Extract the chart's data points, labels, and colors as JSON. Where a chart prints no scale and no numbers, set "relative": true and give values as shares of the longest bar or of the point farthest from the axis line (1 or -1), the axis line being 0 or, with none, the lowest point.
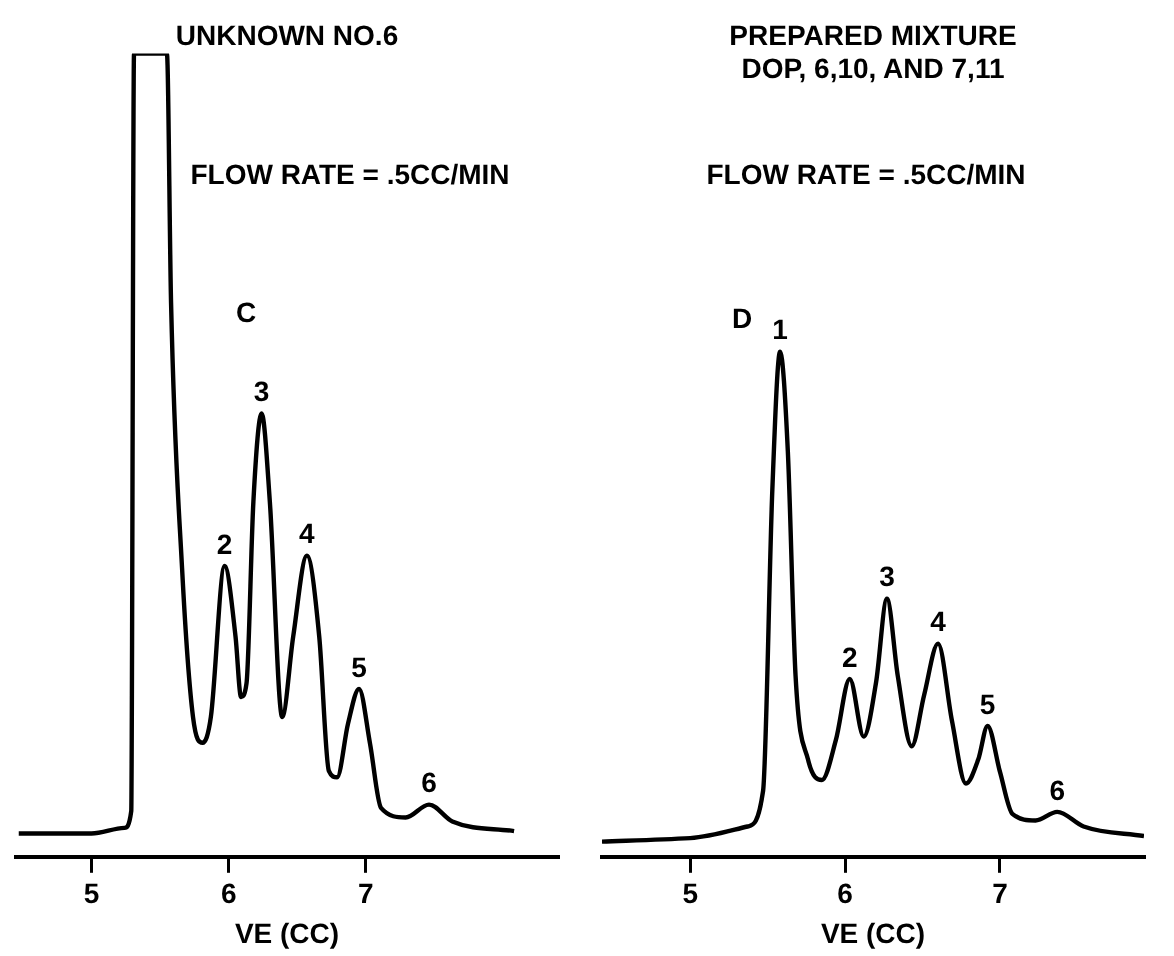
{
  "chart_data": [
    {
      "type": "line",
      "title": "UNKNOWN NO.6",
      "xlabel": "VE (CC)",
      "relative": true,
      "xlim": [
        4.45,
        8.4
      ],
      "xticks": [
        5,
        6,
        7
      ],
      "tick_labels": "x",
      "grid": false,
      "legend": false,
      "marker": "none",
      "line_style": "solid",
      "series": [
        {
          "color": "#000000",
          "x": [
            4.47,
            5.0,
            5.24,
            5.29,
            5.31,
            5.55,
            5.58,
            5.66,
            5.74,
            5.81,
            5.87,
            5.97,
            6.05,
            6.09,
            6.13,
            6.18,
            6.24,
            6.3,
            6.39,
            6.47,
            6.57,
            6.66,
            6.73,
            6.79,
            6.87,
            6.95,
            7.03,
            7.11,
            7.29,
            7.46,
            7.63,
            8.08
          ],
          "values": [
            0.029,
            0.029,
            0.036,
            0.057,
            1.0,
            1.0,
            0.69,
            0.36,
            0.174,
            0.142,
            0.174,
            0.362,
            0.274,
            0.199,
            0.216,
            0.442,
            0.552,
            0.442,
            0.174,
            0.274,
            0.375,
            0.274,
            0.107,
            0.099,
            0.166,
            0.209,
            0.141,
            0.061,
            0.049,
            0.065,
            0.044,
            0.032
          ]
        }
      ],
      "annotations": [
        "FLOW RATE = .5CC/MIN",
        "C",
        {
          "text": "2",
          "x": 5.97,
          "y": 0.362
        },
        {
          "text": "3",
          "x": 6.24,
          "y": 0.552
        },
        {
          "text": "4",
          "x": 6.57,
          "y": 0.375
        },
        {
          "text": "5",
          "x": 6.95,
          "y": 0.209
        },
        {
          "text": "6",
          "x": 7.46,
          "y": 0.065
        }
      ]
    },
    {
      "type": "line",
      "title": "PREPARED MIXTURE",
      "subtitle": "DOP, 6,10, AND 7,11",
      "xlabel": "VE (CC)",
      "relative": true,
      "xlim": [
        4.43,
        7.93
      ],
      "xticks": [
        5,
        6,
        7
      ],
      "tick_labels": "x",
      "grid": false,
      "legend": false,
      "marker": "none",
      "line_style": "solid",
      "series": [
        {
          "color": "#000000",
          "x": [
            4.43,
            5.0,
            5.37,
            5.47,
            5.53,
            5.58,
            5.63,
            5.68,
            5.76,
            5.85,
            5.94,
            6.03,
            6.12,
            6.2,
            6.27,
            6.34,
            6.43,
            6.51,
            6.6,
            6.69,
            6.78,
            6.86,
            6.92,
            7.0,
            7.08,
            7.23,
            7.37,
            7.54,
            7.93
          ],
          "values": [
            0.03,
            0.037,
            0.06,
            0.13,
            0.727,
            1.0,
            0.803,
            0.358,
            0.193,
            0.152,
            0.231,
            0.352,
            0.238,
            0.346,
            0.511,
            0.358,
            0.219,
            0.32,
            0.422,
            0.269,
            0.145,
            0.193,
            0.259,
            0.168,
            0.085,
            0.072,
            0.089,
            0.06,
            0.041
          ]
        }
      ],
      "annotations": [
        "FLOW RATE = .5CC/MIN",
        "D",
        {
          "text": "1",
          "x": 5.58,
          "y": 1.0
        },
        {
          "text": "2",
          "x": 6.03,
          "y": 0.352
        },
        {
          "text": "3",
          "x": 6.27,
          "y": 0.511
        },
        {
          "text": "4",
          "x": 6.6,
          "y": 0.422
        },
        {
          "text": "5",
          "x": 6.92,
          "y": 0.259
        },
        {
          "text": "6",
          "x": 7.37,
          "y": 0.089
        }
      ]
    }
  ]
}
